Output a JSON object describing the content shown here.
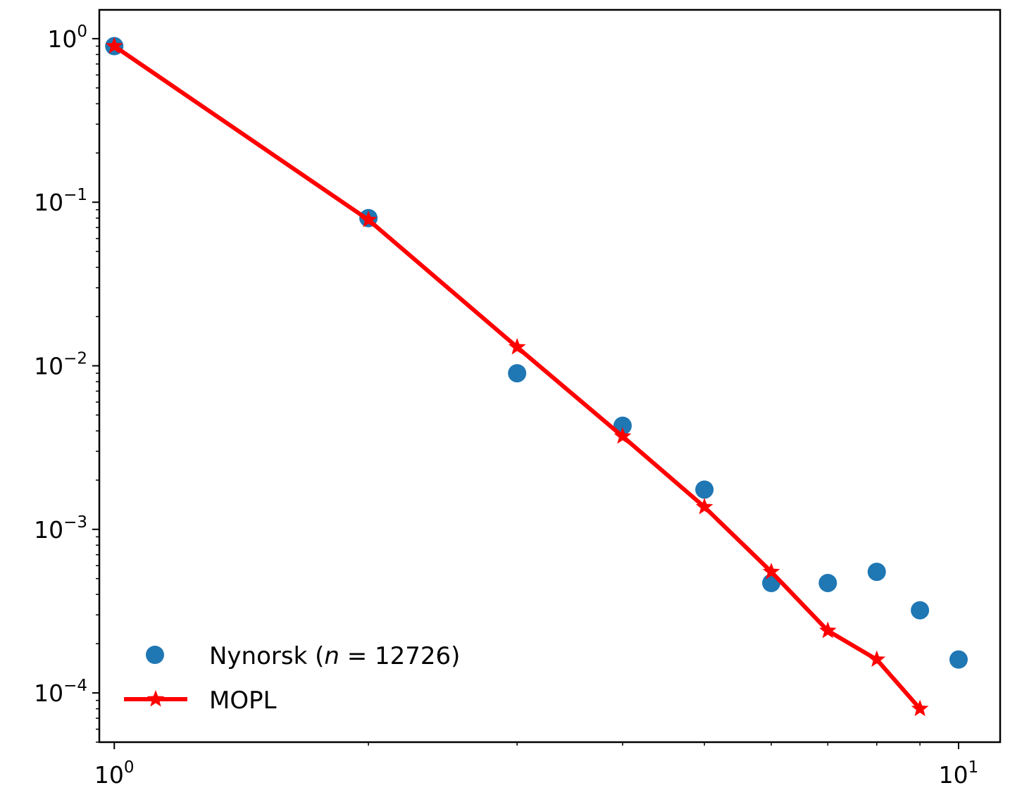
{
  "chart_data": {
    "type": "scatter",
    "xscale": "log",
    "yscale": "log",
    "xlim": [
      0.96,
      11.2
    ],
    "ylim": [
      5e-05,
      1.5
    ],
    "grid": false,
    "legend_position": "lower-left",
    "xticks": [
      {
        "value": 1,
        "base": "10",
        "exp": "0"
      },
      {
        "value": 10,
        "base": "10",
        "exp": "1"
      }
    ],
    "yticks": [
      {
        "value": 1,
        "base": "10",
        "exp": "0"
      },
      {
        "value": 0.1,
        "base": "10",
        "exp": "−1"
      },
      {
        "value": 0.01,
        "base": "10",
        "exp": "−2"
      },
      {
        "value": 0.001,
        "base": "10",
        "exp": "−3"
      },
      {
        "value": 0.0001,
        "base": "10",
        "exp": "−4"
      }
    ],
    "series": [
      {
        "name": "Nynorsk",
        "name_parts": {
          "prefix": "Nynorsk (",
          "var": "n",
          "eq": " = 12726)"
        },
        "kind": "scatter",
        "color": "#1f77b4",
        "points": [
          {
            "x": 1,
            "y": 0.9
          },
          {
            "x": 2,
            "y": 0.08
          },
          {
            "x": 3,
            "y": 0.009
          },
          {
            "x": 4,
            "y": 0.0043
          },
          {
            "x": 5,
            "y": 0.00175
          },
          {
            "x": 6,
            "y": 0.00047
          },
          {
            "x": 7,
            "y": 0.00047
          },
          {
            "x": 8,
            "y": 0.00055
          },
          {
            "x": 9,
            "y": 0.00032
          },
          {
            "x": 10,
            "y": 0.00016
          }
        ]
      },
      {
        "name": "MOPL",
        "kind": "line",
        "marker": "star",
        "color": "#ff0000",
        "points": [
          {
            "x": 1,
            "y": 0.9
          },
          {
            "x": 2,
            "y": 0.078
          },
          {
            "x": 3,
            "y": 0.013
          },
          {
            "x": 4,
            "y": 0.0037
          },
          {
            "x": 5,
            "y": 0.00137
          },
          {
            "x": 6,
            "y": 0.00055
          },
          {
            "x": 7,
            "y": 0.00024
          },
          {
            "x": 8,
            "y": 0.00016
          },
          {
            "x": 9,
            "y": 8e-05
          }
        ]
      }
    ]
  }
}
